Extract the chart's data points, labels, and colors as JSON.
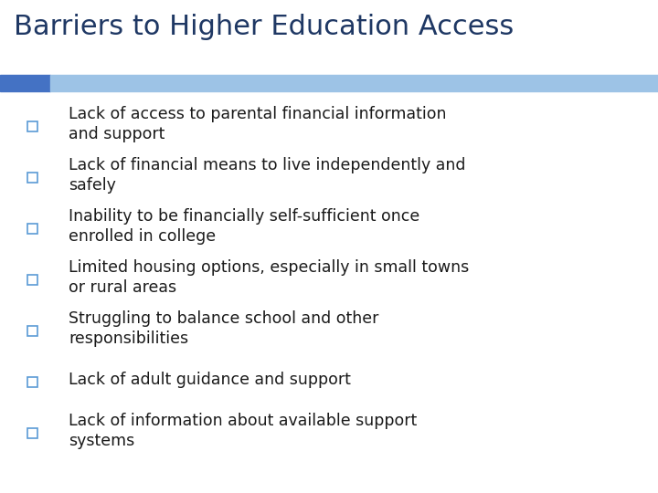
{
  "title": "Barriers to Higher Education Access",
  "title_color": "#1F3864",
  "title_fontsize": 22,
  "title_bold": false,
  "background_color": "#ffffff",
  "bar_left_color": "#4472C4",
  "bar_right_color": "#9DC3E6",
  "bullet_items": [
    "Lack of access to parental financial information\nand support",
    "Lack of financial means to live independently and\nsafely",
    "Inability to be financially self-sufficient once\nenrolled in college",
    "Limited housing options, especially in small towns\nor rural areas",
    "Struggling to balance school and other\nresponsibilities",
    "Lack of adult guidance and support",
    "Lack of information about available support\nsystems"
  ],
  "bullet_color": "#1a1a1a",
  "bullet_fontsize": 12.5,
  "checkbox_color": "#5B9BD5"
}
